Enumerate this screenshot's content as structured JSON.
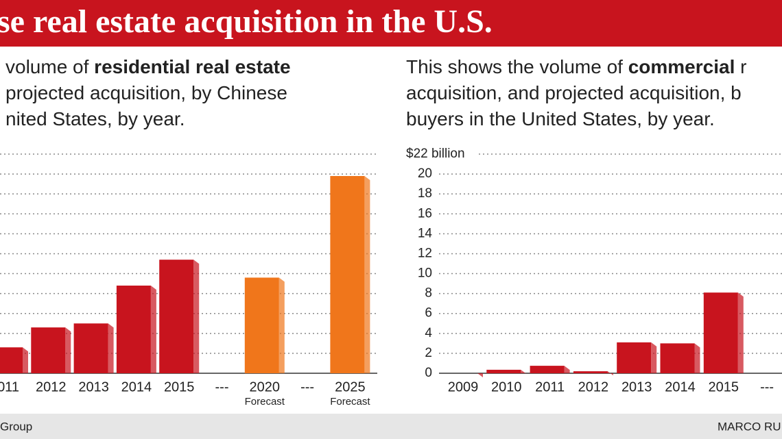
{
  "title": "se real estate acquisition in the U.S.",
  "chart_data": [
    {
      "type": "bar",
      "description": [
        [
          {
            "text": "volume of ",
            "bold": false
          },
          {
            "text": "residential real estate",
            "bold": true
          }
        ],
        [
          {
            "text": "projected acquisition, by Chinese",
            "bold": false
          }
        ],
        [
          {
            "text": "nited States, by year.",
            "bold": false
          }
        ]
      ],
      "categories": [
        "011",
        "2012",
        "2013",
        "2014",
        "2015",
        "---",
        "2020",
        "---",
        "2025"
      ],
      "sublabels": [
        null,
        null,
        null,
        null,
        null,
        null,
        "Forecast",
        null,
        "Forecast"
      ],
      "values": [
        1.3,
        2.3,
        2.5,
        4.4,
        5.7,
        null,
        4.8,
        null,
        9.9
      ],
      "colors": [
        "#c8141e",
        "#c8141e",
        "#c8141e",
        "#c8141e",
        "#c8141e",
        null,
        "#f0761b",
        null,
        "#f0761b"
      ],
      "ylim": [
        0,
        11
      ],
      "yticks": [
        0,
        1,
        2,
        3,
        4,
        5,
        6,
        7,
        8,
        9,
        10,
        11
      ],
      "tick_labels": false,
      "grid": true
    },
    {
      "type": "bar",
      "description": [
        [
          {
            "text": "This shows the volume of ",
            "bold": false
          },
          {
            "text": "commercial",
            "bold": true
          },
          {
            "text": " r",
            "bold": false
          }
        ],
        [
          {
            "text": "acquisition, and projected acquisition, b",
            "bold": false
          }
        ],
        [
          {
            "text": "buyers in the United States, by year.",
            "bold": false
          }
        ]
      ],
      "categories": [
        "2009",
        "2010",
        "2011",
        "2012",
        "2013",
        "2014",
        "2015",
        "---"
      ],
      "sublabels": [
        null,
        null,
        null,
        null,
        null,
        null,
        null,
        null
      ],
      "values": [
        0,
        0.35,
        0.75,
        0.2,
        3.1,
        3.0,
        8.1,
        null
      ],
      "colors": [
        "#c8141e",
        "#c8141e",
        "#c8141e",
        "#c8141e",
        "#c8141e",
        "#c8141e",
        "#c8141e",
        null
      ],
      "ylim": [
        0,
        22
      ],
      "yticks": [
        0,
        2,
        4,
        6,
        8,
        10,
        12,
        14,
        16,
        18,
        20,
        {
          "value": 22,
          "label": "$22 billion"
        }
      ],
      "tick_labels": true,
      "grid": true
    }
  ],
  "footer": {
    "left": "Group",
    "right": "MARCO RU"
  }
}
